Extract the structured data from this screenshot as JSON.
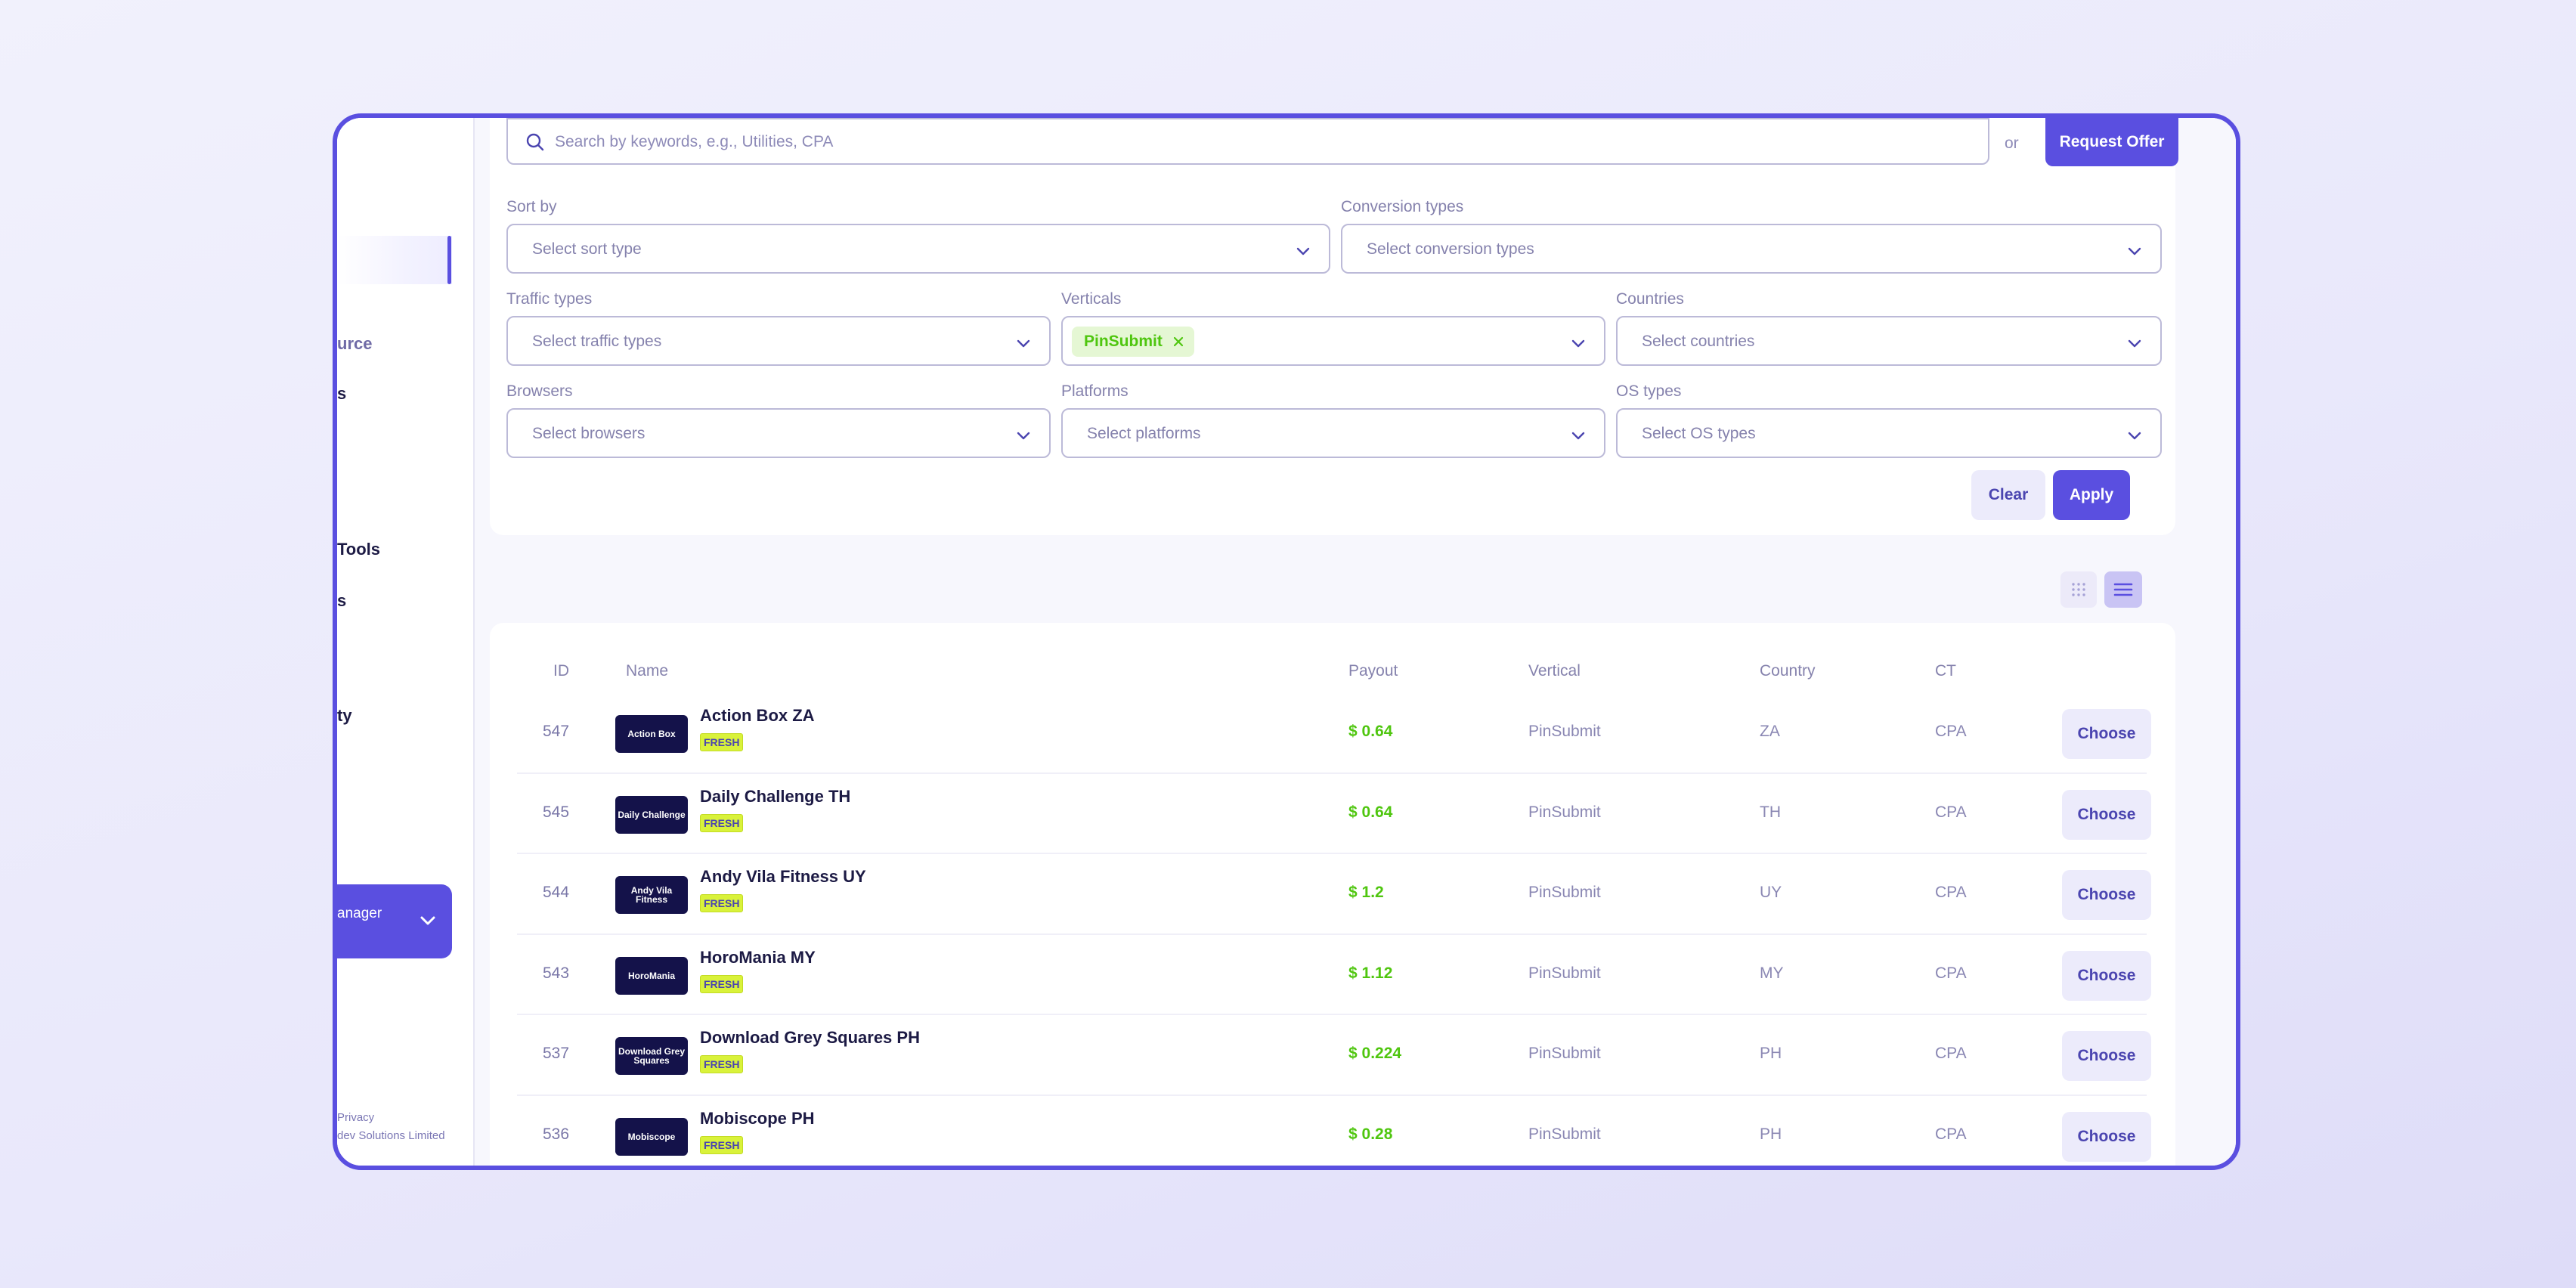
{
  "sidebar": {
    "logo_fragment": "",
    "items": [
      {
        "label": "urce"
      },
      {
        "label": "s"
      },
      {
        "label": "Tools"
      },
      {
        "label": "s"
      },
      {
        "label": "ty"
      }
    ],
    "manager_label": "anager",
    "footer": {
      "privacy": "Privacy",
      "company": "dev Solutions Limited"
    }
  },
  "search": {
    "placeholder": "Search by keywords, e.g., Utilities, CPA",
    "or_label": "or",
    "request_label": "Request Offer"
  },
  "filters": {
    "sort": {
      "label": "Sort by",
      "placeholder": "Select sort type"
    },
    "conversion": {
      "label": "Conversion types",
      "placeholder": "Select conversion types"
    },
    "traffic": {
      "label": "Traffic types",
      "placeholder": "Select traffic types"
    },
    "verticals": {
      "label": "Verticals",
      "selected_chip": "PinSubmit"
    },
    "countries": {
      "label": "Countries",
      "placeholder": "Select countries"
    },
    "browsers": {
      "label": "Browsers",
      "placeholder": "Select browsers"
    },
    "platforms": {
      "label": "Platforms",
      "placeholder": "Select platforms"
    },
    "os": {
      "label": "OS types",
      "placeholder": "Select OS types"
    },
    "clear_label": "Clear",
    "apply_label": "Apply"
  },
  "view_toggle": {
    "active": "list",
    "icons": [
      "grid-icon",
      "list-icon"
    ]
  },
  "table": {
    "headers": {
      "id": "ID",
      "name": "Name",
      "payout": "Payout",
      "vertical": "Vertical",
      "country": "Country",
      "ct": "CT"
    },
    "badge_label": "FRESH",
    "choose_label": "Choose",
    "rows": [
      {
        "id": "547",
        "thumb": "Action Box",
        "name": "Action Box ZA",
        "payout": "$ 0.64",
        "vertical": "PinSubmit",
        "country": "ZA",
        "ct": "CPA"
      },
      {
        "id": "545",
        "thumb": "Daily Challenge",
        "name": "Daily Challenge TH",
        "payout": "$ 0.64",
        "vertical": "PinSubmit",
        "country": "TH",
        "ct": "CPA"
      },
      {
        "id": "544",
        "thumb": "Andy Vila Fitness",
        "name": "Andy Vila Fitness UY",
        "payout": "$ 1.2",
        "vertical": "PinSubmit",
        "country": "UY",
        "ct": "CPA"
      },
      {
        "id": "543",
        "thumb": "HoroMania",
        "name": "HoroMania MY",
        "payout": "$ 1.12",
        "vertical": "PinSubmit",
        "country": "MY",
        "ct": "CPA"
      },
      {
        "id": "537",
        "thumb": "Download Grey Squares",
        "name": "Download Grey Squares PH",
        "payout": "$ 0.224",
        "vertical": "PinSubmit",
        "country": "PH",
        "ct": "CPA"
      },
      {
        "id": "536",
        "thumb": "Mobiscope",
        "name": "Mobiscope PH",
        "payout": "$ 0.28",
        "vertical": "PinSubmit",
        "country": "PH",
        "ct": "CPA"
      }
    ]
  },
  "colors": {
    "accent": "#5a4fe0",
    "payout_green": "#4fc60f",
    "badge_lime": "#d9f23a",
    "thumb_navy": "#14124a"
  }
}
